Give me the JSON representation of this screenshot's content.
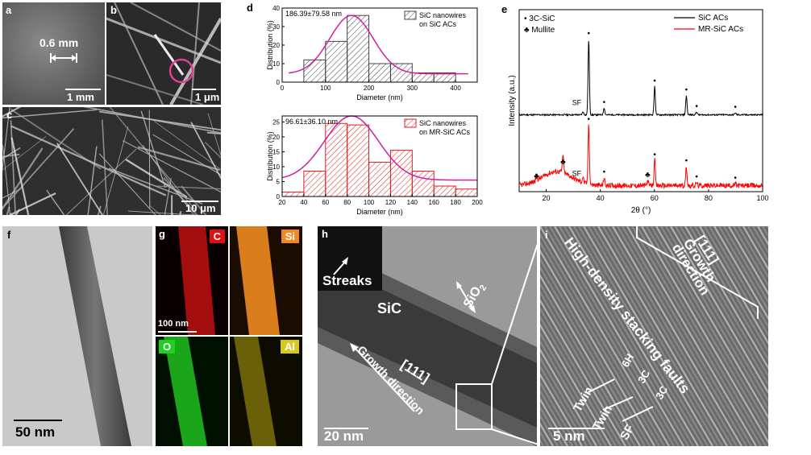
{
  "panels": {
    "a": {
      "label": "a",
      "annotation": "0.6 mm",
      "scale": "1 mm"
    },
    "b": {
      "label": "b",
      "scale": "1 μm"
    },
    "c": {
      "label": "c",
      "scale": "10 μm"
    },
    "f": {
      "label": "f",
      "scale": "50 nm"
    },
    "g": {
      "label": "g",
      "maps": [
        "C",
        "Si",
        "O",
        "Al"
      ],
      "scale": "100 nm",
      "colors": {
        "C": "#e01010",
        "Si": "#f08a20",
        "O": "#20d020",
        "Al": "#d8c820"
      }
    },
    "h": {
      "label": "h",
      "inset": "Streaks",
      "material": "SiC",
      "shell": "SiO",
      "shell_sub": "2",
      "direction": "[111]",
      "direction_text": "Growth direction",
      "scale": "20 nm"
    },
    "i": {
      "label": "i",
      "direction": "[111]",
      "growth1": "Growth",
      "growth2": "direction",
      "faults": "High-density stacking faults",
      "twin1": "Twin",
      "twin2": "Twin",
      "sf": "SF",
      "lbl_6h": "6H",
      "lbl_3c1": "3C",
      "lbl_3c2": "3C",
      "scale": "5 nm"
    }
  },
  "chart_data": [
    {
      "id": "d-top",
      "panel": "d",
      "type": "bar",
      "legend": [
        "SiC nanowires",
        "on SiC ACs"
      ],
      "annotation": "186.39±79.58 nm",
      "xlabel": "Diameter (nm)",
      "ylabel": "Distribution (%)",
      "xlim": [
        0,
        450
      ],
      "ylim": [
        0,
        40
      ],
      "xticks": [
        0,
        100,
        200,
        300,
        400
      ],
      "yticks": [
        0,
        10,
        20,
        30,
        40
      ],
      "bin_width": 50,
      "bin_centers": [
        75,
        125,
        175,
        225,
        275,
        325,
        375
      ],
      "values": [
        12,
        22,
        36,
        10,
        10,
        5,
        5
      ],
      "fit": {
        "type": "gaussian",
        "mean": 160,
        "sigma": 50,
        "baseline": 4.5,
        "peak": 36
      },
      "bar_color": "#444444",
      "fit_color": "#d0209a"
    },
    {
      "id": "d-bottom",
      "panel": "d",
      "type": "bar",
      "legend": [
        "SiC nanowires",
        "on MR-SiC ACs"
      ],
      "annotation": "96.61±36.10 nm",
      "xlabel": "Diameter (nm)",
      "ylabel": "Distribution (%)",
      "xlim": [
        20,
        200
      ],
      "ylim": [
        0,
        27
      ],
      "xticks": [
        20,
        40,
        60,
        80,
        100,
        120,
        140,
        160,
        180,
        200
      ],
      "yticks": [
        0,
        5,
        10,
        15,
        20,
        25
      ],
      "bin_width": 20,
      "bin_centers": [
        30,
        50,
        70,
        90,
        110,
        130,
        150,
        170,
        190
      ],
      "values": [
        1.5,
        8.5,
        24.5,
        24,
        11.5,
        15.5,
        8.5,
        3.5,
        2.5
      ],
      "fit": {
        "type": "gaussian",
        "mean": 84,
        "sigma": 25,
        "baseline": 5.5,
        "peak": 27
      },
      "bar_color": "#e02020",
      "fit_color": "#d0209a"
    },
    {
      "id": "e",
      "panel": "e",
      "type": "line",
      "title": "",
      "xlabel": "2θ (°)",
      "ylabel": "Intensity (a.u.)",
      "xlim": [
        10,
        100
      ],
      "xticks": [
        20,
        40,
        60,
        80,
        100
      ],
      "legend_markers": [
        "• 3C-SiC",
        "♣ Mullite"
      ],
      "series": [
        {
          "name": "SiC ACs",
          "color": "#000000",
          "offset": 70,
          "peaks": [
            [
              35.7,
              75
            ],
            [
              41.4,
              7
            ],
            [
              60.1,
              28
            ],
            [
              71.8,
              19
            ],
            [
              75.6,
              3
            ],
            [
              89.9,
              2
            ],
            [
              33.6,
              3
            ]
          ],
          "markers": [
            [
              35.7,
              "•"
            ],
            [
              41.4,
              "•"
            ],
            [
              60.1,
              "•"
            ],
            [
              71.8,
              "•"
            ],
            [
              75.6,
              "•"
            ],
            [
              89.9,
              "•"
            ]
          ],
          "sf_at": 33.6,
          "sf_label": "SF"
        },
        {
          "name": "MR-SiC ACs",
          "color": "#ff0000",
          "offset": 0,
          "peaks": [
            [
              16.4,
              4
            ],
            [
              26.2,
              18
            ],
            [
              33.6,
              6
            ],
            [
              35.7,
              60
            ],
            [
              41.4,
              8
            ],
            [
              57.5,
              5
            ],
            [
              60.1,
              25
            ],
            [
              71.8,
              19
            ],
            [
              75.6,
              3
            ],
            [
              89.9,
              2
            ]
          ],
          "markers": [
            [
              16.4,
              "♣"
            ],
            [
              26.2,
              "♣"
            ],
            [
              35.7,
              "•"
            ],
            [
              41.4,
              "•"
            ],
            [
              57.5,
              "♣"
            ],
            [
              60.1,
              "•"
            ],
            [
              71.8,
              "•"
            ],
            [
              75.6,
              "•"
            ],
            [
              89.9,
              "•"
            ]
          ],
          "sf_at": 33.6,
          "sf_label": "SF"
        }
      ]
    }
  ]
}
